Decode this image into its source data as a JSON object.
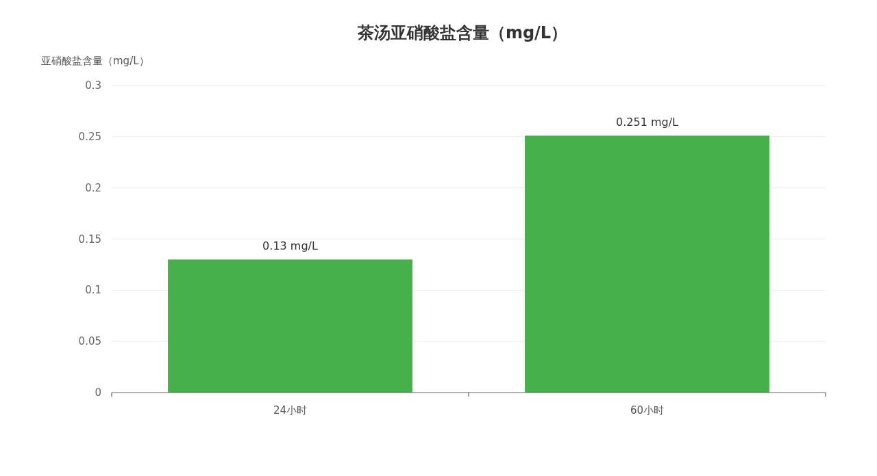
{
  "chart_data": {
    "type": "bar",
    "title": "茶汤亚硝酸盐含量（mg/L）",
    "ylabel": "亚硝酸盐含量（mg/L）",
    "categories": [
      "24小时",
      "60小时"
    ],
    "values": [
      0.13,
      0.251
    ],
    "value_labels": [
      "0.13 mg/L",
      "0.251 mg/L"
    ],
    "color": "#46b04a",
    "ylim": [
      0,
      0.3
    ],
    "yticks": [
      0,
      0.05,
      0.1,
      0.15,
      0.2,
      0.25,
      0.3
    ],
    "grid": "y"
  }
}
